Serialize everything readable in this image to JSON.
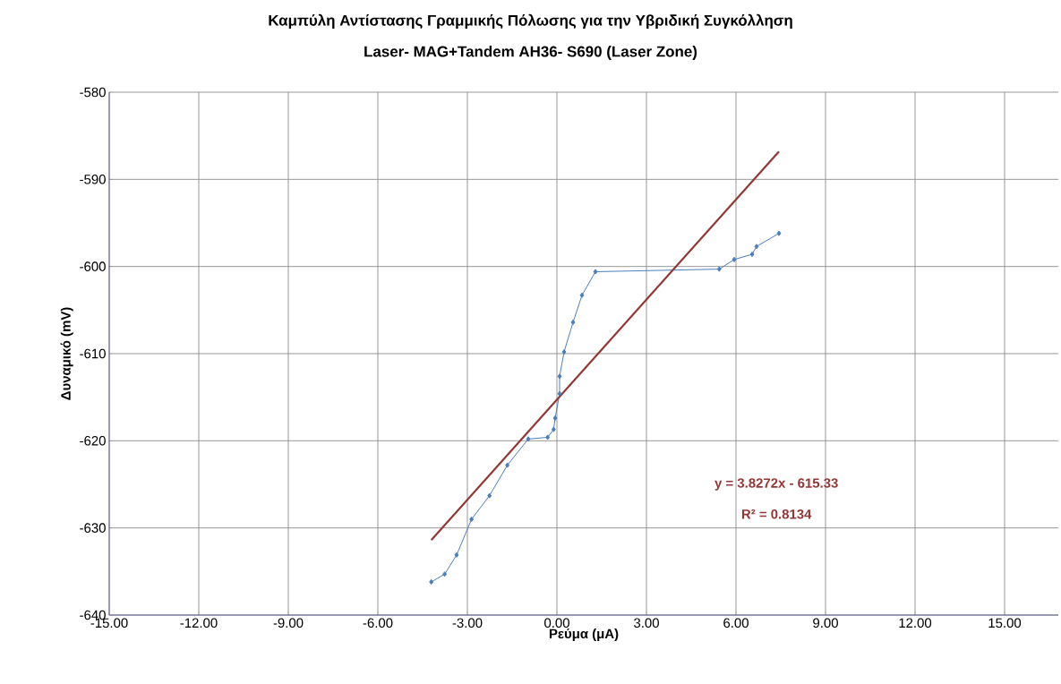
{
  "chart_data": {
    "type": "line",
    "title": "Καμπύλη Αντίστασης Γραμμικής Πόλωσης για την Υβριδική Συγκόλληση",
    "subtitle": "Laser- MAG+Tandem AH36- S690  (Laser Zone)",
    "xlabel": "Ρεύμα (μA)",
    "ylabel": "Δυναμικό  (mV)",
    "xlim": [
      -15,
      16.8
    ],
    "ylim": [
      -640,
      -580
    ],
    "xticks": [
      {
        "value": -15,
        "label": "-15.00"
      },
      {
        "value": -12,
        "label": "-12.00"
      },
      {
        "value": -9,
        "label": "-9.00"
      },
      {
        "value": -6,
        "label": "-6.00"
      },
      {
        "value": -3,
        "label": "-3.00"
      },
      {
        "value": 0,
        "label": "0.00"
      },
      {
        "value": 3,
        "label": "3.00"
      },
      {
        "value": 6,
        "label": "6.00"
      },
      {
        "value": 9,
        "label": "9.00"
      },
      {
        "value": 12,
        "label": "12.00"
      },
      {
        "value": 15,
        "label": "15.00"
      }
    ],
    "yticks": [
      -640,
      -630,
      -620,
      -610,
      -600,
      -590,
      -580
    ],
    "grid": true,
    "series": [
      {
        "color": "#4a7ebb",
        "marker": "diamond",
        "x": [
          -4.21,
          -3.76,
          -3.36,
          -2.86,
          -2.26,
          -1.66,
          -0.96,
          -0.31,
          -0.11,
          -0.06,
          0.09,
          0.09,
          0.24,
          0.54,
          0.84,
          1.29,
          5.44,
          5.94,
          6.54,
          6.69,
          7.44
        ],
        "values": [
          -636.2,
          -635.3,
          -633.1,
          -629.0,
          -626.3,
          -622.8,
          -619.8,
          -619.6,
          -618.7,
          -617.4,
          -614.6,
          -612.6,
          -609.8,
          -606.4,
          -603.3,
          -600.6,
          -600.3,
          -599.2,
          -598.6,
          -597.7,
          -596.2
        ]
      },
      {
        "color": "#943634",
        "marker": "none",
        "x": [
          -4.21,
          7.44
        ],
        "values": [
          -631.4,
          -586.8
        ]
      }
    ],
    "annotations": [
      "y = 3.8272x - 615.33",
      "R² = 0.8134"
    ]
  }
}
